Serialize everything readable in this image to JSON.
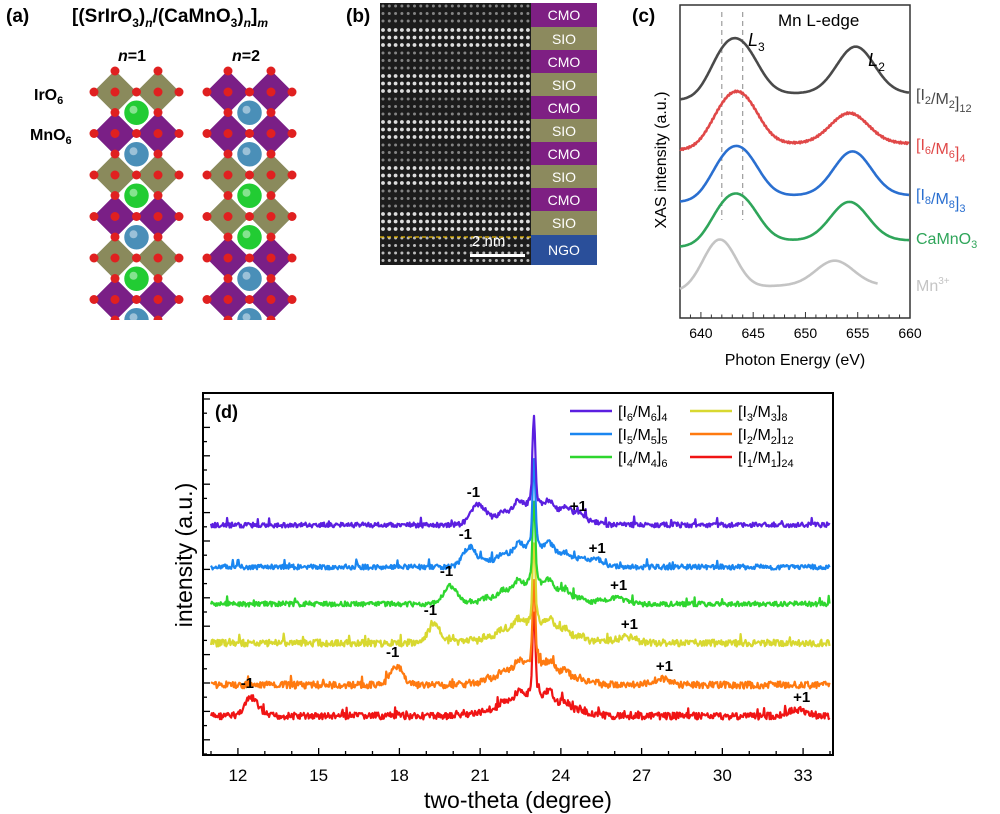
{
  "figure": {
    "panel_labels": {
      "a": "(a)",
      "b": "(b)",
      "c": "(c)",
      "d": "(d)"
    }
  },
  "panel_a": {
    "formula": {
      "prefix": "[(SrIrO",
      "sub1": "3",
      "n1": "n",
      "mid": "/(CaMnO",
      "sub2": "3",
      "n2": "n",
      "close": "]",
      "m": "m"
    },
    "structures": [
      {
        "label_n": "n",
        "label_value": "=1",
        "layers": [
          "SIO",
          "CMO",
          "SIO",
          "CMO",
          "SIO",
          "CMO",
          "SIO",
          "CMO"
        ]
      },
      {
        "label_n": "n",
        "label_value": "=2",
        "layers": [
          "CMO",
          "CMO",
          "SIO",
          "SIO",
          "CMO",
          "CMO",
          "SIO",
          "SIO"
        ]
      }
    ],
    "octahedra_labels": [
      {
        "base": "IrO",
        "sub": "6"
      },
      {
        "base": "MnO",
        "sub": "6"
      }
    ],
    "colors": {
      "IrO6": "#8a8a5c",
      "MnO6": "#7a1f86",
      "oxygen": "#e02020",
      "Sr": "#22cc33",
      "Ca": "#4a8fb8"
    }
  },
  "panel_b": {
    "layers": [
      {
        "label": "CMO",
        "color": "#7e1f83"
      },
      {
        "label": "SIO",
        "color": "#8c8a5e"
      },
      {
        "label": "CMO",
        "color": "#7e1f83"
      },
      {
        "label": "SIO",
        "color": "#8c8a5e"
      },
      {
        "label": "CMO",
        "color": "#7e1f83"
      },
      {
        "label": "SIO",
        "color": "#8c8a5e"
      },
      {
        "label": "CMO",
        "color": "#7e1f83"
      },
      {
        "label": "SIO",
        "color": "#8c8a5e"
      },
      {
        "label": "CMO",
        "color": "#7e1f83"
      },
      {
        "label": "SIO",
        "color": "#8c8a5e"
      },
      {
        "label": "NGO",
        "color": "#2a4f9a"
      }
    ],
    "scale_bar": "2 nm",
    "interface_line_color": "#e8b800"
  },
  "chart_data": [
    {
      "id": "c",
      "type": "line",
      "title": "Mn L-edge",
      "xlabel": "Photon Energy (eV)",
      "ylabel": "XAS intensity (a.u.)",
      "xlim": [
        638,
        660
      ],
      "xticks": [
        640,
        645,
        650,
        655,
        660
      ],
      "grid": false,
      "annotations": [
        {
          "text": "L",
          "sub": "3",
          "x": 644
        },
        {
          "text": "L",
          "sub": "2",
          "x": 655
        }
      ],
      "reference_lines_x": [
        642,
        644
      ],
      "series": [
        {
          "name": "[I2/M2]12",
          "label_parts": [
            "[I",
            "2",
            "/M",
            "2",
            "]",
            "12"
          ],
          "color": "#4a4a4a",
          "offset": 4,
          "peaks": [
            {
              "x": 641.9,
              "h": 0.55,
              "w": 1.4
            },
            {
              "x": 644.0,
              "h": 0.85,
              "w": 1.6
            },
            {
              "x": 654.8,
              "h": 0.85,
              "w": 1.8
            }
          ]
        },
        {
          "name": "[I6/M6]4",
          "label_parts": [
            "[I",
            "6",
            "/M",
            "6",
            "]",
            "4"
          ],
          "color": "#e04848",
          "offset": 3,
          "peaks": [
            {
              "x": 641.9,
              "h": 0.45,
              "w": 1.4
            },
            {
              "x": 644.0,
              "h": 0.85,
              "w": 1.6
            },
            {
              "x": 654.2,
              "h": 0.55,
              "w": 1.8
            }
          ]
        },
        {
          "name": "[I8/M8]3",
          "label_parts": [
            "[I",
            "8",
            "/M",
            "8",
            "]",
            "3"
          ],
          "color": "#2a6fd0",
          "offset": 2,
          "peaks": [
            {
              "x": 641.9,
              "h": 0.45,
              "w": 1.4
            },
            {
              "x": 644.0,
              "h": 0.8,
              "w": 1.6
            },
            {
              "x": 654.5,
              "h": 0.8,
              "w": 1.8
            }
          ]
        },
        {
          "name": "CaMnO3",
          "label_parts": [
            "CaMnO",
            "3",
            "",
            "",
            "",
            ""
          ],
          "color": "#2fa55a",
          "offset": 1,
          "peaks": [
            {
              "x": 641.9,
              "h": 0.45,
              "w": 1.4
            },
            {
              "x": 644.0,
              "h": 0.75,
              "w": 1.6
            },
            {
              "x": 654.2,
              "h": 0.7,
              "w": 1.8
            }
          ]
        },
        {
          "name": "Mn3+",
          "label_parts": [
            "Mn",
            "",
            "",
            "",
            "3+",
            ""
          ],
          "color": "#c4c4c4",
          "offset": 0,
          "peaks": [
            {
              "x": 641.8,
              "h": 0.95,
              "w": 1.6
            },
            {
              "x": 652.8,
              "h": 0.45,
              "w": 1.8
            }
          ],
          "xmax": 657
        }
      ]
    },
    {
      "id": "d",
      "type": "line",
      "xlabel": "two-theta (degree)",
      "ylabel": "intensity (a.u.)",
      "xlim": [
        11,
        34
      ],
      "xticks": [
        12,
        15,
        18,
        21,
        24,
        27,
        30,
        33
      ],
      "yticks_count": 26,
      "grid": false,
      "legend_position": "top-right",
      "main_peak_x": 23.0,
      "series": [
        {
          "name": "[I6/M6]4",
          "label_parts": [
            "[I",
            "6",
            "/M",
            "6",
            "]",
            "4"
          ],
          "color": "#5b1fe0",
          "satellite_minus": 20.9,
          "satellite_plus": 24.5
        },
        {
          "name": "[I5/M5]5",
          "label_parts": [
            "[I",
            "5",
            "/M",
            "5",
            "]",
            "5"
          ],
          "color": "#1a86f0",
          "satellite_minus": 20.6,
          "satellite_plus": 25.2
        },
        {
          "name": "[I4/M4]6",
          "label_parts": [
            "[I",
            "4",
            "/M",
            "4",
            "]",
            "6"
          ],
          "color": "#2ed62e",
          "satellite_minus": 19.9,
          "satellite_plus": 26.0
        },
        {
          "name": "[I3/M3]8",
          "label_parts": [
            "[I",
            "3",
            "/M",
            "3",
            "]",
            "8"
          ],
          "color": "#d8d830",
          "satellite_minus": 19.3,
          "satellite_plus": 26.4
        },
        {
          "name": "[I2/M2]12",
          "label_parts": [
            "[I",
            "2",
            "/M",
            "2",
            "]",
            "12"
          ],
          "color": "#ff7a10",
          "satellite_minus": 17.9,
          "satellite_plus": 27.7
        },
        {
          "name": "[I1/M1]24",
          "label_parts": [
            "[I",
            "1",
            "/M",
            "1",
            "]",
            "24"
          ],
          "color": "#f01414",
          "satellite_minus": 12.5,
          "satellite_plus": 32.8
        }
      ],
      "satellite_labels": {
        "minus": "-1",
        "plus": "+1"
      }
    }
  ]
}
